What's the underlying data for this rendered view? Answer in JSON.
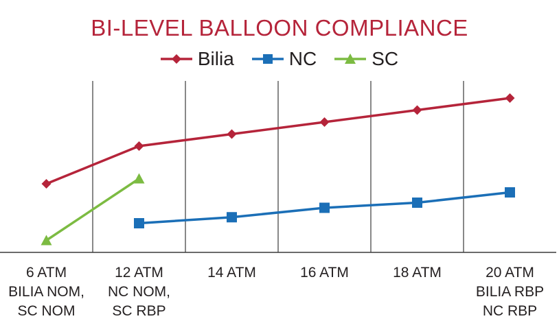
{
  "chart_data": {
    "type": "line",
    "title": "BI-LEVEL BALLOON COMPLIANCE",
    "categories": [
      [
        "6 ATM",
        "BILIA NOM,",
        "SC NOM"
      ],
      [
        "12 ATM",
        "NC NOM,",
        "SC RBP"
      ],
      [
        "14 ATM"
      ],
      [
        "16 ATM"
      ],
      [
        "18 ATM"
      ],
      [
        "20 ATM",
        "BILIA RBP",
        "NC RBP"
      ]
    ],
    "series": [
      {
        "name": "Bilia",
        "color": "#b5243a",
        "marker": "diamond",
        "values": [
          40,
          62,
          69,
          76,
          83,
          90
        ]
      },
      {
        "name": "NC",
        "color": "#1b6fb7",
        "marker": "square",
        "values": [
          null,
          17,
          20.5,
          26,
          29,
          35
        ]
      },
      {
        "name": "SC",
        "color": "#7cbb42",
        "marker": "triangle",
        "values": [
          7,
          43,
          null,
          null,
          null,
          null
        ]
      }
    ],
    "ylim": [
      0,
      100
    ],
    "title_color": "#b5243a"
  }
}
